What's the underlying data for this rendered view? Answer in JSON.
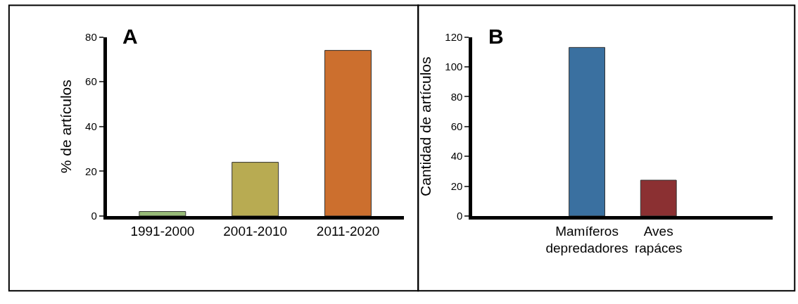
{
  "chart_data": [
    {
      "type": "bar",
      "title": "A",
      "ylabel": "% de artículos",
      "categories": [
        "1991-2000",
        "2001-2010",
        "2011-2020"
      ],
      "values": [
        2,
        24,
        74
      ],
      "colors": [
        "#98bb78",
        "#b8ab52",
        "#cc6f2e"
      ],
      "ylim": [
        0,
        80
      ],
      "yticks": [
        0,
        20,
        40,
        60,
        80
      ]
    },
    {
      "type": "bar",
      "title": "B",
      "ylabel": "Cantidad de artículos",
      "categories": [
        null,
        "Mamíferos\ndepredadores",
        "Aves\nrapáces",
        null
      ],
      "values": [
        null,
        113,
        24,
        null
      ],
      "colors": [
        "#3a70a0",
        "#3a70a0",
        "#8b3032",
        "#8b3032"
      ],
      "ylim": [
        0,
        120
      ],
      "yticks": [
        0,
        20,
        40,
        60,
        80,
        100,
        120
      ]
    }
  ]
}
